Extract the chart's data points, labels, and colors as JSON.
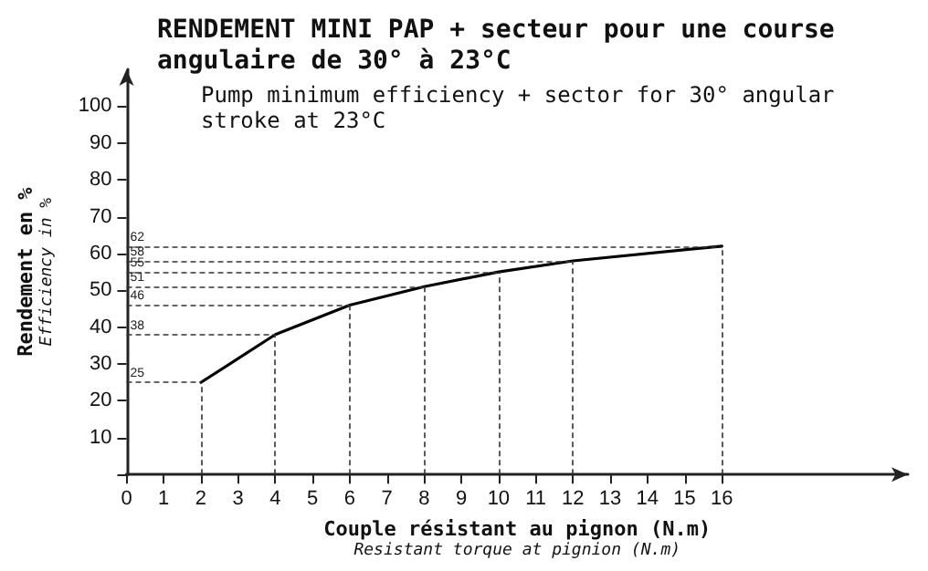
{
  "chart_data": {
    "type": "line",
    "title": "RENDEMENT MINI PAP + secteur pour une course angulaire de 30° à 23°C",
    "subtitle": "Pump minimum efficiency + sector for 30° angular stroke at 23°C",
    "xlabel": "Couple résistant au pignon (N.m)\nResistant torque at pignion (N.m)",
    "ylabel": "Rendement en %\nEfficiency in %",
    "x": [
      2,
      4,
      6,
      8,
      10,
      12,
      16
    ],
    "series": [
      {
        "color": "#000000",
        "values": [
          25,
          38,
          46,
          51,
          55,
          58,
          62
        ]
      }
    ],
    "xlim": [
      0,
      21
    ],
    "xticks": [
      0,
      1,
      2,
      3,
      4,
      5,
      6,
      7,
      8,
      9,
      10,
      11,
      12,
      13,
      14,
      15,
      16
    ],
    "ylim": [
      0,
      110
    ],
    "yticks": [
      {
        "value": 0,
        "label": null
      },
      10,
      20,
      30,
      40,
      50,
      60,
      70,
      80,
      90,
      100
    ],
    "ref_lines": [
      {
        "axis": "y",
        "value": 25,
        "label": "25",
        "line_style": "dashed"
      },
      {
        "axis": "y",
        "value": 38,
        "label": "38",
        "line_style": "dashed"
      },
      {
        "axis": "y",
        "value": 46,
        "label": "46",
        "line_style": "dashed"
      },
      {
        "axis": "y",
        "value": 51,
        "label": "51",
        "line_style": "dashed"
      },
      {
        "axis": "y",
        "value": 55,
        "label": "55",
        "line_style": "dashed"
      },
      {
        "axis": "y",
        "value": 58,
        "label": "58",
        "line_style": "dashed"
      },
      {
        "axis": "y",
        "value": 62,
        "label": "62",
        "line_style": "dashed"
      },
      {
        "axis": "x",
        "value": 2,
        "line_style": "dashed"
      },
      {
        "axis": "x",
        "value": 4,
        "line_style": "dashed"
      },
      {
        "axis": "x",
        "value": 6,
        "line_style": "dashed"
      },
      {
        "axis": "x",
        "value": 8,
        "line_style": "dashed"
      },
      {
        "axis": "x",
        "value": 10,
        "line_style": "dashed"
      },
      {
        "axis": "x",
        "value": 12,
        "line_style": "dashed"
      },
      {
        "axis": "x",
        "value": 16,
        "line_style": "dashed"
      }
    ],
    "grid": false,
    "marker": "none",
    "line_style": "solid"
  }
}
